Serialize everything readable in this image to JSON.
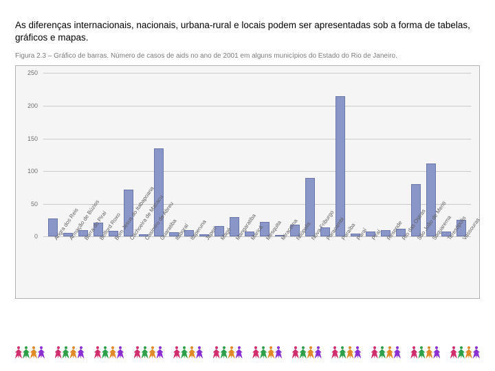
{
  "intro_text": "As diferenças internacionais, nacionais, urbana-rural e locais podem ser apresentadas sob a forma de tabelas, gráficos e mapas.",
  "caption_text": "Figura 2.3 – Gráfico de barras. Número de casos de aids no ano de 2001 em alguns municípios do Estado do Rio de Janeiro.",
  "chart": {
    "type": "bar",
    "background_color": "#f5f5f5",
    "grid_color": "#c8c8c8",
    "bar_fill": "#8a96c8",
    "bar_stroke": "#6a76a8",
    "ylim": [
      0,
      250
    ],
    "ytick_step": 50,
    "yticks": [
      0,
      50,
      100,
      150,
      200,
      250
    ],
    "label_fontsize": 9,
    "x_label_fontsize": 8,
    "x_label_rotation_deg": -55,
    "bar_width_ratio": 0.7,
    "categories": [
      "Angra dos Reis",
      "Armação de Búzios",
      "Barra do Piraí",
      "Belford Roxo",
      "Bom Jesus do Itabapoana",
      "Cachoeira de Macacu",
      "Casimiro de Abreu",
      "Guaratiba",
      "Itaboraí",
      "Itaperuna",
      "Japeri",
      "Magé",
      "Mangaratiba",
      "Maricá",
      "Mesquita",
      "Miracema",
      "Nilópolis",
      "Nova Friburgo",
      "Paracambi",
      "Paraíba",
      "Paraí",
      "Piraí",
      "Resende",
      "Rio das Ostras",
      "São João de Meriti",
      "Saquarema",
      "Teresópolis",
      "Vassouras"
    ],
    "values": [
      28,
      6,
      10,
      22,
      9,
      72,
      4,
      135,
      7,
      10,
      4,
      16,
      30,
      8,
      23,
      3,
      18,
      90,
      14,
      215,
      5,
      8,
      10,
      12,
      80,
      112,
      8,
      26
    ]
  },
  "footer_people": {
    "cluster_count": 12,
    "people_per_cluster": 4,
    "colors": [
      "#d02f6e",
      "#2fa04a",
      "#e08a2a",
      "#8a2fd0"
    ]
  }
}
